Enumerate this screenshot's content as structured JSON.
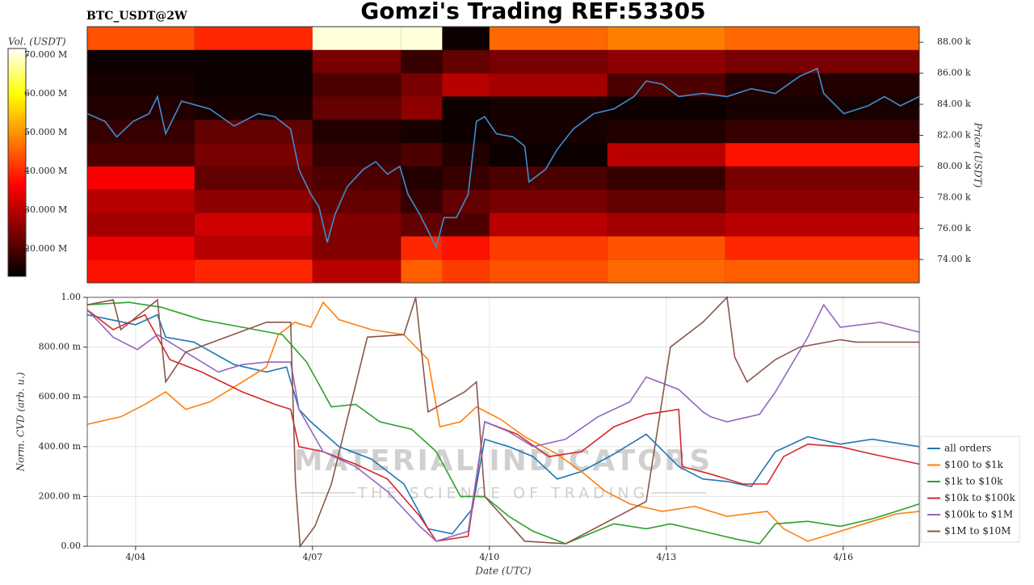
{
  "chart_data": [
    {
      "type": "heatmap",
      "title": "Gomzi's Trading REF:53305",
      "subtitle": "BTC_USDT@2W",
      "y_label": "Price (USDT)",
      "colorbar_label": "Vol. (USDT)",
      "xlim": [
        3.18,
        17.29
      ],
      "ylim": [
        72500,
        89000
      ],
      "yticks": [
        {
          "value": 74000,
          "label": "74.00 k"
        },
        {
          "value": 76000,
          "label": "76.00 k"
        },
        {
          "value": 78000,
          "label": "78.00 k"
        },
        {
          "value": 80000,
          "label": "80.00 k"
        },
        {
          "value": 82000,
          "label": "82.00 k"
        },
        {
          "value": 84000,
          "label": "84.00 k"
        },
        {
          "value": 86000,
          "label": "86.00 k"
        },
        {
          "value": 88000,
          "label": "88.00 k"
        }
      ],
      "heatmap": {
        "x_edges": [
          3.18,
          5,
          7,
          8.5,
          9.2,
          10,
          12,
          14,
          17.29
        ],
        "y_edges": [
          72500,
          74000,
          75500,
          77000,
          78500,
          80000,
          81500,
          83000,
          84500,
          86000,
          87500,
          89000
        ],
        "values": [
          [
            38000000,
            40000000,
            30000000,
            45000000,
            42000000,
            44000000,
            46000000,
            45000000
          ],
          [
            35000000,
            30000000,
            25000000,
            40000000,
            38000000,
            42000000,
            44000000,
            40000000
          ],
          [
            28000000,
            32000000,
            25000000,
            22000000,
            20000000,
            30000000,
            28000000,
            30000000
          ],
          [
            30000000,
            26000000,
            22000000,
            18000000,
            22000000,
            24000000,
            22000000,
            26000000
          ],
          [
            36000000,
            22000000,
            20000000,
            16000000,
            18000000,
            20000000,
            18000000,
            24000000
          ],
          [
            20000000,
            24000000,
            18000000,
            20000000,
            16000000,
            14000000,
            30000000,
            38000000
          ],
          [
            18000000,
            22000000,
            16000000,
            15000000,
            14000000,
            15000000,
            16000000,
            18000000
          ],
          [
            16000000,
            15000000,
            22000000,
            26000000,
            14000000,
            15000000,
            14000000,
            15000000
          ],
          [
            15000000,
            14000000,
            20000000,
            24000000,
            30000000,
            28000000,
            20000000,
            16000000
          ],
          [
            14000000,
            14000000,
            24000000,
            18000000,
            22000000,
            24000000,
            26000000,
            24000000
          ],
          [
            44000000,
            40000000,
            70000000,
            70000000,
            14000000,
            46000000,
            48000000,
            46000000
          ]
        ],
        "clim": [
          12900000,
          71700000
        ],
        "cticks": [
          {
            "value": 20000000,
            "label": "20.000 M"
          },
          {
            "value": 30000000,
            "label": "30.000 M"
          },
          {
            "value": 40000000,
            "label": "40.000 M"
          },
          {
            "value": 50000000,
            "label": "50.000 M"
          },
          {
            "value": 60000000,
            "label": "60.000 M"
          },
          {
            "value": 70000000,
            "label": "70.000 M"
          }
        ]
      },
      "price": {
        "color": "#3a8fd0",
        "x": [
          3.18,
          3.48,
          3.68,
          3.96,
          4.23,
          4.37,
          4.51,
          4.78,
          5.26,
          5.67,
          6.08,
          6.36,
          6.63,
          6.77,
          6.97,
          7.11,
          7.25,
          7.38,
          7.59,
          7.86,
          8.07,
          8.27,
          8.48,
          8.62,
          8.82,
          9.1,
          9.23,
          9.44,
          9.64,
          9.78,
          9.92,
          10.12,
          10.4,
          10.6,
          10.67,
          10.95,
          11.15,
          11.42,
          11.77,
          12.11,
          12.45,
          12.66,
          12.93,
          13.21,
          13.62,
          14.03,
          14.44,
          14.85,
          15.26,
          15.56,
          15.67,
          16.01,
          16.42,
          16.7,
          16.97,
          17.29
        ],
        "values": [
          83400,
          82900,
          81900,
          82900,
          83400,
          84500,
          82100,
          84200,
          83700,
          82600,
          83400,
          83200,
          82400,
          79800,
          78200,
          77400,
          75100,
          76900,
          78700,
          79800,
          80300,
          79500,
          80000,
          78200,
          76900,
          74800,
          76700,
          76700,
          78200,
          82900,
          83200,
          82100,
          81900,
          81300,
          79000,
          79800,
          81100,
          82400,
          83400,
          83700,
          84500,
          85500,
          85300,
          84500,
          84700,
          84500,
          85000,
          84700,
          85800,
          86300,
          84700,
          83400,
          83900,
          84500,
          83900,
          84500
        ]
      }
    },
    {
      "type": "line",
      "x_label": "Date (UTC)",
      "y_label": "Norm. CVD (arb. u.)",
      "watermark": [
        "MATERIAL INDICATORS",
        "THE SCIENCE OF TRADING"
      ],
      "xlim": [
        3.18,
        17.29
      ],
      "ylim": [
        0,
        1.0
      ],
      "grid": true,
      "legend": "lower right outside",
      "xticks": [
        {
          "value": 4,
          "label": "4/04"
        },
        {
          "value": 7,
          "label": "4/07"
        },
        {
          "value": 10,
          "label": "4/10"
        },
        {
          "value": 13,
          "label": "4/13"
        },
        {
          "value": 16,
          "label": "4/16"
        }
      ],
      "yticks": [
        {
          "value": 0,
          "label": "0.00"
        },
        {
          "value": 0.2,
          "label": "200.00 m"
        },
        {
          "value": 0.4,
          "label": "400.00 m"
        },
        {
          "value": 0.6,
          "label": "600.00 m"
        },
        {
          "value": 0.8,
          "label": "800.00 m"
        },
        {
          "value": 1,
          "label": "1.00"
        }
      ],
      "series": [
        {
          "name": "all orders",
          "color": "#1f77b4",
          "x": [
            3.18,
            4.0,
            4.37,
            4.51,
            4.99,
            5.67,
            6.22,
            6.56,
            6.77,
            6.97,
            7.45,
            8.0,
            8.55,
            8.96,
            9.37,
            9.71,
            9.92,
            10.33,
            10.74,
            11.15,
            11.56,
            12.11,
            12.66,
            13.21,
            13.62,
            14.03,
            14.44,
            14.85,
            15.4,
            15.95,
            16.49,
            17.29
          ],
          "values": [
            0.93,
            0.89,
            0.93,
            0.84,
            0.82,
            0.73,
            0.7,
            0.72,
            0.55,
            0.5,
            0.4,
            0.35,
            0.25,
            0.07,
            0.05,
            0.15,
            0.43,
            0.4,
            0.36,
            0.27,
            0.3,
            0.37,
            0.45,
            0.32,
            0.27,
            0.26,
            0.24,
            0.38,
            0.44,
            0.41,
            0.43,
            0.4
          ]
        },
        {
          "name": "$100 to $1k",
          "color": "#ff7f0e",
          "x": [
            3.18,
            3.75,
            4.16,
            4.51,
            4.85,
            5.26,
            5.81,
            6.22,
            6.42,
            6.7,
            6.97,
            7.18,
            7.45,
            8.0,
            8.55,
            8.96,
            9.16,
            9.51,
            9.78,
            10.19,
            10.6,
            11.15,
            11.56,
            11.97,
            12.38,
            12.93,
            13.48,
            14.03,
            14.71,
            14.99,
            15.4,
            15.95,
            16.49,
            16.9,
            17.29
          ],
          "values": [
            0.49,
            0.52,
            0.57,
            0.62,
            0.55,
            0.58,
            0.66,
            0.72,
            0.85,
            0.9,
            0.88,
            0.98,
            0.91,
            0.87,
            0.85,
            0.75,
            0.48,
            0.5,
            0.56,
            0.51,
            0.44,
            0.37,
            0.3,
            0.22,
            0.17,
            0.14,
            0.16,
            0.12,
            0.14,
            0.07,
            0.02,
            0.06,
            0.1,
            0.13,
            0.14
          ]
        },
        {
          "name": "$1k to $10k",
          "color": "#2ca02c",
          "x": [
            3.18,
            3.89,
            4.44,
            5.12,
            5.81,
            6.49,
            6.9,
            7.32,
            7.73,
            8.14,
            8.68,
            9.1,
            9.51,
            9.92,
            10.33,
            10.74,
            11.29,
            11.7,
            12.11,
            12.66,
            13.07,
            13.62,
            14.16,
            14.58,
            14.85,
            15.4,
            15.95,
            16.49,
            16.9,
            17.29
          ],
          "values": [
            0.97,
            0.98,
            0.96,
            0.91,
            0.88,
            0.85,
            0.74,
            0.56,
            0.57,
            0.5,
            0.47,
            0.38,
            0.2,
            0.2,
            0.12,
            0.06,
            0.01,
            0.05,
            0.09,
            0.07,
            0.09,
            0.06,
            0.03,
            0.01,
            0.09,
            0.1,
            0.08,
            0.11,
            0.14,
            0.17
          ]
        },
        {
          "name": "$10k to $100k",
          "color": "#d62728",
          "x": [
            3.18,
            3.62,
            4.16,
            4.58,
            5.12,
            5.81,
            6.36,
            6.63,
            6.77,
            7.18,
            7.73,
            8.27,
            8.82,
            9.1,
            9.64,
            9.92,
            10.47,
            11.01,
            11.56,
            12.11,
            12.66,
            13.21,
            13.27,
            13.75,
            14.3,
            14.71,
            14.99,
            15.4,
            15.95,
            16.49,
            17.29
          ],
          "values": [
            0.95,
            0.87,
            0.93,
            0.75,
            0.7,
            0.62,
            0.57,
            0.55,
            0.4,
            0.38,
            0.33,
            0.27,
            0.12,
            0.02,
            0.04,
            0.5,
            0.45,
            0.36,
            0.38,
            0.48,
            0.53,
            0.55,
            0.32,
            0.29,
            0.25,
            0.25,
            0.36,
            0.41,
            0.4,
            0.37,
            0.33
          ]
        },
        {
          "name": "$100k to $1M",
          "color": "#9467bd",
          "x": [
            3.18,
            3.62,
            4.03,
            4.37,
            4.85,
            5.4,
            5.81,
            6.22,
            6.63,
            6.77,
            7.18,
            7.73,
            8.27,
            8.82,
            9.1,
            9.64,
            9.92,
            10.33,
            10.74,
            11.29,
            11.84,
            12.38,
            12.66,
            13.21,
            13.62,
            13.75,
            14.03,
            14.58,
            14.85,
            15.4,
            15.67,
            15.95,
            16.63,
            17.29
          ],
          "values": [
            0.95,
            0.84,
            0.79,
            0.85,
            0.78,
            0.7,
            0.73,
            0.74,
            0.74,
            0.55,
            0.38,
            0.32,
            0.22,
            0.08,
            0.02,
            0.06,
            0.5,
            0.46,
            0.4,
            0.43,
            0.52,
            0.58,
            0.68,
            0.63,
            0.54,
            0.52,
            0.5,
            0.53,
            0.62,
            0.84,
            0.97,
            0.88,
            0.9,
            0.86
          ]
        },
        {
          "name": "$1M to $10M",
          "color": "#8c564b",
          "x": [
            3.18,
            3.62,
            3.75,
            4.37,
            4.51,
            4.85,
            6.22,
            6.63,
            6.71,
            6.79,
            7.04,
            7.32,
            7.93,
            8.55,
            8.75,
            8.96,
            9.58,
            9.78,
            9.92,
            10.6,
            11.29,
            12.66,
            13.07,
            13.62,
            14.03,
            14.16,
            14.37,
            14.85,
            15.26,
            15.95,
            16.22,
            17.29
          ],
          "values": [
            0.97,
            0.99,
            0.87,
            0.99,
            0.66,
            0.78,
            0.9,
            0.9,
            0.26,
            0.0,
            0.08,
            0.25,
            0.84,
            0.85,
            1.0,
            0.54,
            0.62,
            0.66,
            0.2,
            0.02,
            0.01,
            0.18,
            0.8,
            0.9,
            1.0,
            0.76,
            0.66,
            0.75,
            0.8,
            0.83,
            0.82,
            0.82
          ]
        }
      ]
    }
  ]
}
